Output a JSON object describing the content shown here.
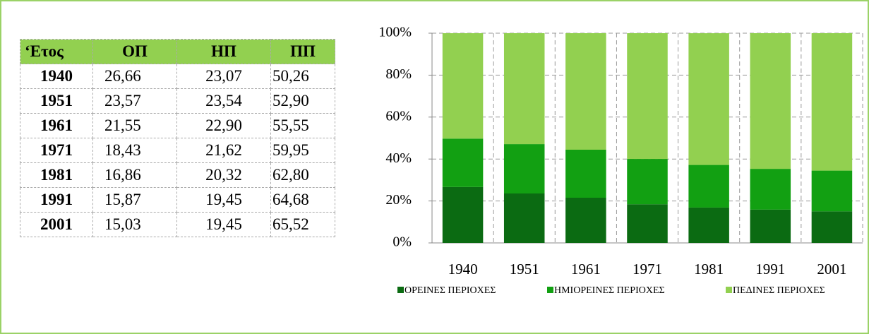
{
  "table": {
    "header": [
      "‘Ετος",
      "ΟΠ",
      "ΗΠ",
      "ΠΠ"
    ],
    "rows": [
      [
        "1940",
        "26,66",
        "23,07",
        "50,26"
      ],
      [
        "1951",
        "23,57",
        "23,54",
        "52,90"
      ],
      [
        "1961",
        "21,55",
        "22,90",
        "55,55"
      ],
      [
        "1971",
        "18,43",
        "21,62",
        "59,95"
      ],
      [
        "1981",
        "16,86",
        "20,32",
        "62,80"
      ],
      [
        "1991",
        "15,87",
        "19,45",
        "64,68"
      ],
      [
        "2001",
        "15,03",
        "19,45",
        "65,52"
      ]
    ]
  },
  "chart_data": {
    "type": "stacked_bar",
    "categories": [
      "1940",
      "1951",
      "1961",
      "1971",
      "1981",
      "1991",
      "2001"
    ],
    "series": [
      {
        "name": "ΟΡΕΙΝΕΣ ΠΕΡΙΟΧΕΣ",
        "color": "#0b6b12",
        "values": [
          26.66,
          23.57,
          21.55,
          18.43,
          16.86,
          15.87,
          15.03
        ]
      },
      {
        "name": "ΗΜΙΟΡΕΙΝΕΣ ΠΕΡΙΟΧΕΣ",
        "color": "#12a012",
        "values": [
          23.07,
          23.54,
          22.9,
          21.62,
          20.32,
          19.45,
          19.45
        ]
      },
      {
        "name": "ΠΕΔΙΝΕΣ ΠΕΡΙΟΧΕΣ",
        "color": "#92d050",
        "values": [
          50.26,
          52.9,
          55.55,
          59.95,
          62.8,
          64.68,
          65.52
        ]
      }
    ],
    "ylim": [
      0,
      100
    ],
    "yticks": [
      {
        "value": 0,
        "label": "0%"
      },
      {
        "value": 20,
        "label": "20%"
      },
      {
        "value": 40,
        "label": "40%"
      },
      {
        "value": 60,
        "label": "60%"
      },
      {
        "value": 80,
        "label": "80%"
      },
      {
        "value": 100,
        "label": "100%"
      }
    ],
    "grid": true,
    "legend": "bottom"
  }
}
